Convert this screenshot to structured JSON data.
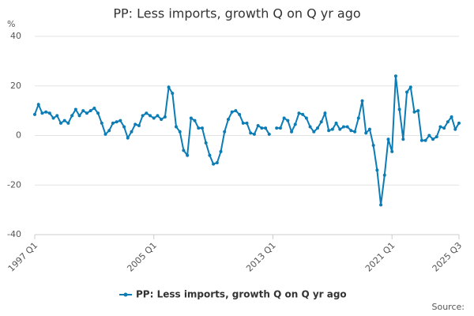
{
  "chart_data": {
    "type": "line",
    "title": "PP: Less imports, growth Q on Q yr ago",
    "y_label": "%",
    "source": "Source:",
    "categories": [
      "1997 Q1",
      null,
      null,
      null,
      null,
      null,
      null,
      null,
      null,
      null,
      null,
      null,
      null,
      null,
      null,
      null,
      null,
      null,
      null,
      null,
      null,
      null,
      null,
      null,
      null,
      null,
      null,
      null,
      null,
      null,
      null,
      null,
      "2005 Q1",
      null,
      null,
      null,
      null,
      null,
      null,
      null,
      null,
      null,
      null,
      null,
      null,
      null,
      null,
      null,
      null,
      null,
      null,
      null,
      null,
      null,
      null,
      null,
      null,
      null,
      null,
      null,
      null,
      null,
      null,
      null,
      "2013 Q1",
      null,
      null,
      null,
      null,
      null,
      null,
      null,
      null,
      null,
      null,
      null,
      null,
      null,
      null,
      null,
      null,
      null,
      null,
      null,
      null,
      null,
      null,
      null,
      null,
      null,
      null,
      null,
      null,
      null,
      null,
      null,
      "2021 Q1",
      null,
      null,
      null,
      null,
      null,
      null,
      null,
      null,
      null,
      null,
      null,
      null,
      null,
      null,
      null,
      null,
      null,
      "2025 Q3"
    ],
    "series": [
      {
        "name": "PP: Less imports, growth Q on Q yr ago",
        "color": "#0b7cb5",
        "values": [
          8.5,
          12.5,
          9,
          9.5,
          9,
          7,
          8,
          5,
          6,
          5,
          8,
          10.5,
          8,
          10,
          9,
          10,
          11,
          9,
          5,
          0.5,
          2,
          5,
          5.5,
          6,
          3.5,
          -1,
          1.5,
          4.5,
          4,
          8,
          9,
          8,
          7,
          8,
          6.5,
          7.5,
          19.5,
          17,
          3.5,
          1.5,
          -6,
          -8,
          7,
          6,
          3,
          3,
          -3,
          -8,
          -11.5,
          -11,
          -6.5,
          1.5,
          6.5,
          9.5,
          10,
          8.5,
          5,
          5,
          1,
          0.5,
          4,
          3,
          3,
          0.5,
          null,
          3,
          3,
          7,
          6,
          1.5,
          4.5,
          9,
          8.5,
          7,
          3.5,
          1.5,
          3,
          5.5,
          9,
          2,
          2.5,
          5,
          2.5,
          3.5,
          3.5,
          2,
          1.5,
          7,
          14,
          1,
          2.5,
          -4,
          -14,
          -28,
          -16,
          -1.5,
          -6.5,
          24,
          10.5,
          -1.5,
          17.5,
          19.5,
          9.5,
          10,
          -2,
          -2,
          0,
          -1.5,
          -0.5,
          3.5,
          3,
          5.5,
          7.5,
          2.5,
          5
        ]
      }
    ],
    "ylim": [
      -40,
      40
    ],
    "yticks": [
      -40,
      -20,
      0,
      20,
      40
    ],
    "grid": true
  }
}
